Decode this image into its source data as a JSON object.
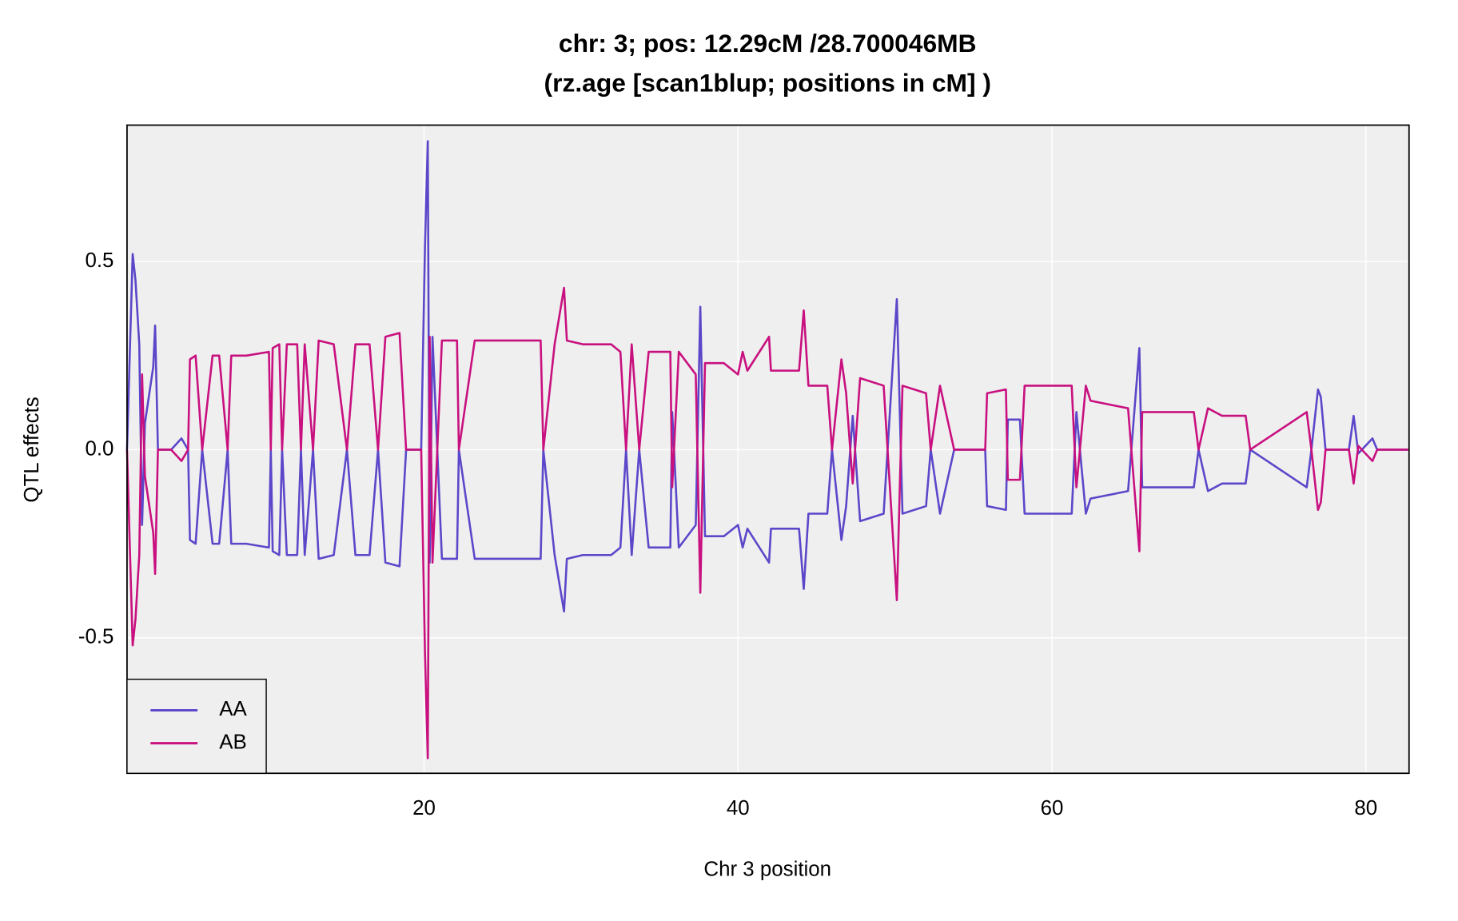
{
  "chart_data": {
    "type": "line",
    "title": [
      "chr: 3; pos: 12.29cM /28.700046MB",
      "(rz.age [scan1blup; positions in cM] )"
    ],
    "x_label": "Chr 3 position",
    "y_label": "QTL effects",
    "x": [
      1.08,
      1.44,
      1.62,
      1.86,
      2.04,
      2.22,
      2.75,
      2.87,
      3.05,
      3.89,
      4.55,
      4.97,
      5.09,
      5.45,
      5.87,
      6.53,
      6.95,
      7.49,
      7.72,
      8.68,
      10.12,
      10.24,
      10.36,
      10.78,
      10.96,
      11.26,
      11.92,
      12.16,
      12.4,
      12.93,
      13.29,
      14.25,
      15.09,
      15.63,
      16.53,
      17.07,
      17.54,
      18.44,
      18.86,
      19.82,
      20.06,
      20.24,
      20.36,
      20.54,
      21.14,
      22.1,
      22.22,
      23.23,
      27.43,
      27.6,
      28.32,
      28.92,
      29.1,
      30.12,
      31.92,
      32.51,
      32.87,
      33.23,
      33.71,
      34.31,
      35.69,
      35.81,
      36.23,
      37.31,
      37.6,
      37.9,
      39.1,
      40.0,
      40.3,
      40.6,
      41.98,
      42.1,
      43.89,
      44.19,
      44.49,
      45.69,
      45.99,
      46.59,
      46.89,
      47.31,
      47.78,
      49.28,
      50.12,
      50.48,
      51.98,
      52.28,
      52.87,
      53.77,
      55.75,
      55.87,
      57.07,
      57.19,
      57.96,
      58.26,
      61.26,
      61.56,
      62.16,
      62.46,
      64.85,
      65.57,
      65.75,
      69.04,
      69.34,
      69.94,
      70.84,
      72.34,
      72.63,
      76.23,
      76.53,
      76.95,
      77.13,
      77.43,
      78.92,
      79.22,
      79.52,
      80.42,
      80.72,
      82.69
    ],
    "series": [
      {
        "name": "AA",
        "color": "#5b47c9",
        "values": [
          0,
          0.52,
          0.45,
          0.28,
          -0.2,
          0.07,
          0.22,
          0.33,
          0,
          0,
          0.03,
          0,
          -0.24,
          -0.25,
          0,
          -0.25,
          -0.25,
          0,
          -0.25,
          -0.25,
          -0.26,
          0,
          -0.27,
          -0.28,
          0,
          -0.28,
          -0.28,
          0,
          -0.28,
          0,
          -0.29,
          -0.28,
          0,
          -0.28,
          -0.28,
          0,
          -0.3,
          -0.31,
          0,
          0,
          0.54,
          0.82,
          -0.3,
          0.3,
          -0.29,
          -0.29,
          0,
          -0.29,
          -0.29,
          0,
          -0.28,
          -0.43,
          -0.29,
          -0.28,
          -0.28,
          -0.26,
          0,
          -0.28,
          0,
          -0.26,
          -0.26,
          0.1,
          -0.26,
          -0.2,
          0.38,
          -0.23,
          -0.23,
          -0.2,
          -0.26,
          -0.21,
          -0.3,
          -0.21,
          -0.21,
          -0.37,
          -0.17,
          -0.17,
          0,
          -0.24,
          -0.15,
          0.09,
          -0.19,
          -0.17,
          0.4,
          -0.17,
          -0.15,
          0,
          -0.17,
          0,
          0,
          -0.15,
          -0.16,
          0.08,
          0.08,
          -0.17,
          -0.17,
          0.1,
          -0.17,
          -0.13,
          -0.11,
          0.27,
          -0.1,
          -0.1,
          0,
          -0.11,
          -0.09,
          -0.09,
          0,
          -0.1,
          0,
          0.16,
          0.14,
          0,
          0,
          0.09,
          -0.01,
          0.03,
          0,
          0
        ]
      },
      {
        "name": "AB",
        "color": "#c8107f",
        "values": [
          0,
          -0.52,
          -0.45,
          -0.28,
          0.2,
          -0.07,
          -0.22,
          -0.33,
          0,
          0,
          -0.03,
          0,
          0.24,
          0.25,
          0,
          0.25,
          0.25,
          0,
          0.25,
          0.25,
          0.26,
          0,
          0.27,
          0.28,
          0,
          0.28,
          0.28,
          0,
          0.28,
          0,
          0.29,
          0.28,
          0,
          0.28,
          0.28,
          0,
          0.3,
          0.31,
          0,
          0,
          -0.54,
          -0.82,
          0.3,
          -0.3,
          0.29,
          0.29,
          0,
          0.29,
          0.29,
          0,
          0.28,
          0.43,
          0.29,
          0.28,
          0.28,
          0.26,
          0,
          0.28,
          0,
          0.26,
          0.26,
          -0.1,
          0.26,
          0.2,
          -0.38,
          0.23,
          0.23,
          0.2,
          0.26,
          0.21,
          0.3,
          0.21,
          0.21,
          0.37,
          0.17,
          0.17,
          0,
          0.24,
          0.15,
          -0.09,
          0.19,
          0.17,
          -0.4,
          0.17,
          0.15,
          0,
          0.17,
          0,
          0,
          0.15,
          0.16,
          -0.08,
          -0.08,
          0.17,
          0.17,
          -0.1,
          0.17,
          0.13,
          0.11,
          -0.27,
          0.1,
          0.1,
          0,
          0.11,
          0.09,
          0.09,
          0,
          0.1,
          0,
          -0.16,
          -0.14,
          0,
          0,
          -0.09,
          0.01,
          -0.03,
          0,
          0
        ]
      }
    ],
    "xlim": [
      1.08,
      82.75
    ],
    "ylim": [
      -0.86,
      0.8625
    ],
    "xticks": [
      20,
      40,
      60,
      80
    ],
    "yticks": [
      -0.5,
      {
        "value": 0,
        "label": "0.0"
      },
      0.5
    ],
    "grid": true,
    "legend": "bottom-left"
  }
}
